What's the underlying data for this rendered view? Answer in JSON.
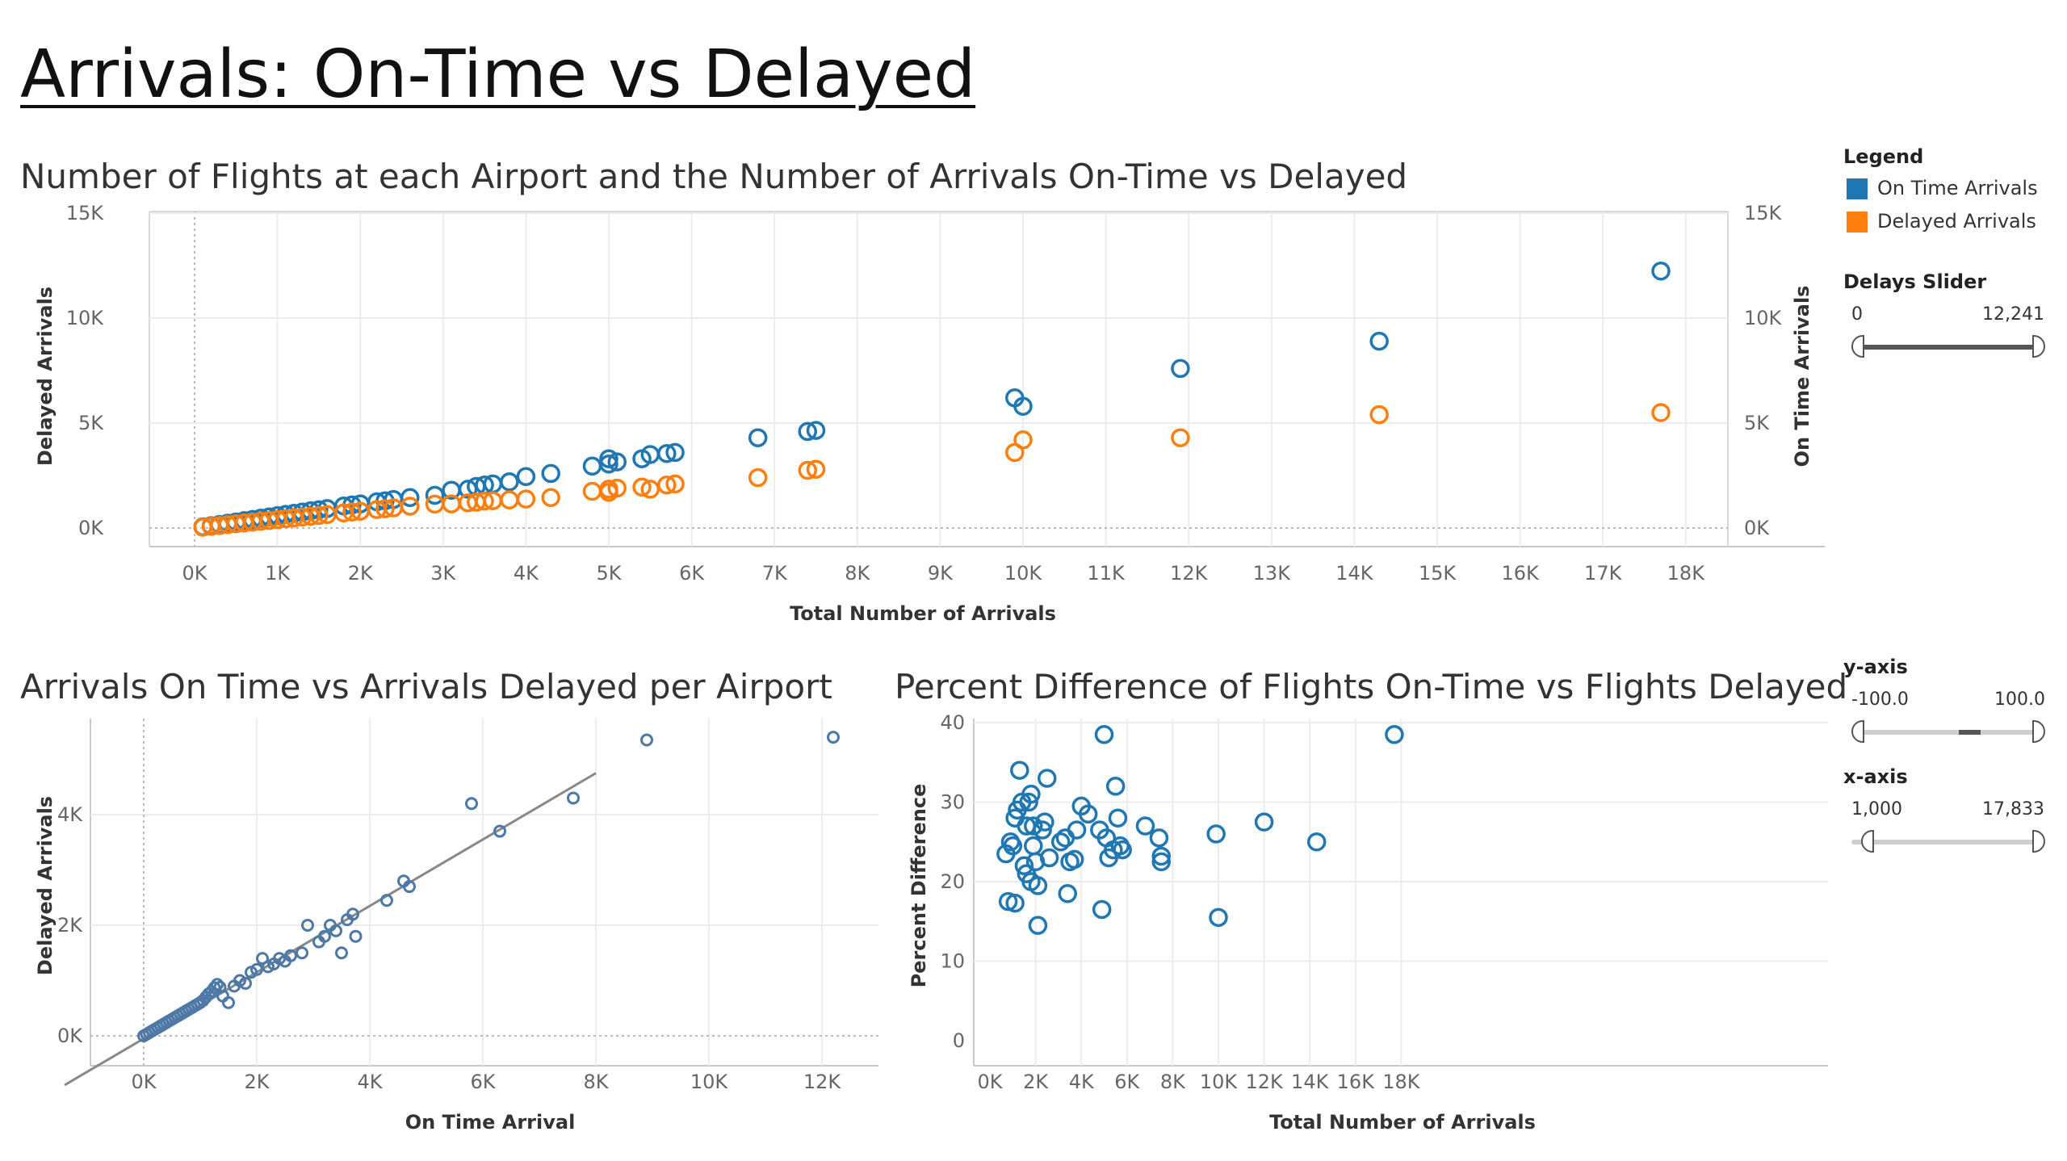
{
  "page": {
    "title": "Arrivals: On-Time vs Delayed"
  },
  "charts": {
    "top": {
      "title": "Number of Flights at each Airport and the Number of Arrivals On-Time vs Delayed"
    },
    "bottom_left": {
      "title": "Arrivals On Time vs Arrivals Delayed per Airport"
    },
    "bottom_right": {
      "title": "Percent Difference of Flights On-Time vs Flights Delayed"
    }
  },
  "sidebar": {
    "legend_title": "Legend",
    "legend_items": [
      {
        "label": "On Time Arrivals",
        "color": "#1f77b4"
      },
      {
        "label": "Delayed Arrivals",
        "color": "#ff7f0e"
      }
    ],
    "delays_slider": {
      "label": "Delays Slider",
      "min_label": "0",
      "max_label": "12,241",
      "min": 0,
      "max": 12241
    },
    "y_axis_filter": {
      "label": "y-axis",
      "min_label": "-100.0",
      "max_label": "100.0",
      "min": -100,
      "max": 100
    },
    "x_axis_filter": {
      "label": "x-axis",
      "min_label": "1,000",
      "max_label": "17,833",
      "min": 1000,
      "max": 17833
    }
  },
  "colors": {
    "on_time": "#1f77b4",
    "delayed": "#ff7f0e",
    "scatter": "#4e79a7",
    "trend": "#888888"
  },
  "chart_data": [
    {
      "type": "scatter",
      "title": "Number of Flights at each Airport and the Number of Arrivals On-Time vs Delayed",
      "xlabel": "Total Number of Arrivals",
      "ylabel": "Delayed Arrivals",
      "y2label": "On Time Arrivals",
      "xlim": [
        0,
        18000
      ],
      "ylim": [
        0,
        15000
      ],
      "xticks": [
        "0K",
        "1K",
        "2K",
        "3K",
        "4K",
        "5K",
        "6K",
        "7K",
        "8K",
        "9K",
        "10K",
        "11K",
        "12K",
        "13K",
        "14K",
        "15K",
        "16K",
        "17K",
        "18K"
      ],
      "yticks": [
        "0K",
        "5K",
        "10K",
        "15K"
      ],
      "grid": true,
      "series": [
        {
          "name": "On Time Arrivals",
          "points": [
            [
              100,
              60
            ],
            [
              200,
              110
            ],
            [
              300,
              170
            ],
            [
              400,
              230
            ],
            [
              500,
              290
            ],
            [
              600,
              350
            ],
            [
              700,
              410
            ],
            [
              800,
              470
            ],
            [
              900,
              530
            ],
            [
              1000,
              590
            ],
            [
              1100,
              650
            ],
            [
              1200,
              700
            ],
            [
              1300,
              760
            ],
            [
              1400,
              820
            ],
            [
              1500,
              870
            ],
            [
              1600,
              930
            ],
            [
              1800,
              1050
            ],
            [
              1900,
              1100
            ],
            [
              2000,
              1150
            ],
            [
              2200,
              1250
            ],
            [
              2300,
              1300
            ],
            [
              2400,
              1360
            ],
            [
              2600,
              1450
            ],
            [
              2900,
              1560
            ],
            [
              3100,
              1800
            ],
            [
              3300,
              1850
            ],
            [
              3400,
              1980
            ],
            [
              3500,
              2050
            ],
            [
              3600,
              2100
            ],
            [
              3800,
              2200
            ],
            [
              4000,
              2450
            ],
            [
              4300,
              2600
            ],
            [
              4800,
              2950
            ],
            [
              5000,
              3050
            ],
            [
              5000,
              3300
            ],
            [
              5100,
              3150
            ],
            [
              5400,
              3300
            ],
            [
              5500,
              3500
            ],
            [
              5700,
              3550
            ],
            [
              5800,
              3600
            ],
            [
              6800,
              4300
            ],
            [
              7400,
              4600
            ],
            [
              7500,
              4650
            ],
            [
              9900,
              6200
            ],
            [
              10000,
              5800
            ],
            [
              11900,
              7600
            ],
            [
              14300,
              8900
            ],
            [
              17700,
              12241
            ]
          ]
        },
        {
          "name": "Delayed Arrivals",
          "points": [
            [
              100,
              40
            ],
            [
              200,
              80
            ],
            [
              300,
              120
            ],
            [
              400,
              160
            ],
            [
              500,
              200
            ],
            [
              600,
              240
            ],
            [
              700,
              280
            ],
            [
              800,
              320
            ],
            [
              900,
              360
            ],
            [
              1000,
              400
            ],
            [
              1100,
              440
            ],
            [
              1200,
              480
            ],
            [
              1300,
              520
            ],
            [
              1400,
              560
            ],
            [
              1500,
              600
            ],
            [
              1600,
              640
            ],
            [
              1800,
              720
            ],
            [
              1900,
              760
            ],
            [
              2000,
              800
            ],
            [
              2200,
              880
            ],
            [
              2300,
              920
            ],
            [
              2400,
              960
            ],
            [
              2600,
              1040
            ],
            [
              2900,
              1140
            ],
            [
              3100,
              1150
            ],
            [
              3300,
              1200
            ],
            [
              3400,
              1230
            ],
            [
              3500,
              1280
            ],
            [
              3600,
              1300
            ],
            [
              3800,
              1340
            ],
            [
              4000,
              1380
            ],
            [
              4300,
              1450
            ],
            [
              4800,
              1750
            ],
            [
              5000,
              1850
            ],
            [
              5000,
              1700
            ],
            [
              5100,
              1900
            ],
            [
              5400,
              1950
            ],
            [
              5500,
              1850
            ],
            [
              5700,
              2050
            ],
            [
              5800,
              2100
            ],
            [
              6800,
              2400
            ],
            [
              7400,
              2750
            ],
            [
              7500,
              2800
            ],
            [
              9900,
              3600
            ],
            [
              10000,
              4200
            ],
            [
              11900,
              4300
            ],
            [
              14300,
              5400
            ],
            [
              17700,
              5500
            ]
          ]
        }
      ]
    },
    {
      "type": "scatter",
      "title": "Arrivals On Time vs Arrivals Delayed per Airport",
      "xlabel": "On Time Arrival",
      "ylabel": "Delayed Arrivals",
      "xlim": [
        -800,
        12800
      ],
      "ylim": [
        -350,
        5800
      ],
      "xticks": [
        0,
        2000,
        4000,
        6000,
        8000,
        10000,
        12000
      ],
      "xticklabels": [
        "0K",
        "2K",
        "4K",
        "6K",
        "8K",
        "10K",
        "12K"
      ],
      "yticks": [
        0,
        2000,
        4000
      ],
      "yticklabels": [
        "0K",
        "2K",
        "4K"
      ],
      "trend_line": {
        "slope": 0.6,
        "intercept": -50
      },
      "points": [
        [
          0,
          0
        ],
        [
          50,
          30
        ],
        [
          100,
          60
        ],
        [
          150,
          90
        ],
        [
          200,
          120
        ],
        [
          250,
          150
        ],
        [
          300,
          180
        ],
        [
          350,
          210
        ],
        [
          400,
          240
        ],
        [
          450,
          270
        ],
        [
          500,
          300
        ],
        [
          550,
          330
        ],
        [
          600,
          360
        ],
        [
          650,
          390
        ],
        [
          700,
          420
        ],
        [
          750,
          450
        ],
        [
          800,
          480
        ],
        [
          850,
          510
        ],
        [
          900,
          540
        ],
        [
          950,
          570
        ],
        [
          1000,
          600
        ],
        [
          1050,
          640
        ],
        [
          1100,
          700
        ],
        [
          1150,
          760
        ],
        [
          1200,
          800
        ],
        [
          1250,
          870
        ],
        [
          1300,
          930
        ],
        [
          1350,
          880
        ],
        [
          1400,
          720
        ],
        [
          1500,
          600
        ],
        [
          1600,
          900
        ],
        [
          1700,
          1000
        ],
        [
          1800,
          950
        ],
        [
          1900,
          1150
        ],
        [
          2000,
          1200
        ],
        [
          2100,
          1400
        ],
        [
          2200,
          1250
        ],
        [
          2300,
          1300
        ],
        [
          2400,
          1400
        ],
        [
          2500,
          1350
        ],
        [
          2600,
          1450
        ],
        [
          2800,
          1500
        ],
        [
          2900,
          2000
        ],
        [
          3100,
          1700
        ],
        [
          3200,
          1800
        ],
        [
          3300,
          2000
        ],
        [
          3400,
          1900
        ],
        [
          3500,
          1500
        ],
        [
          3600,
          2100
        ],
        [
          3700,
          2200
        ],
        [
          3750,
          1800
        ],
        [
          4300,
          2450
        ],
        [
          4600,
          2800
        ],
        [
          4700,
          2700
        ],
        [
          5800,
          4200
        ],
        [
          6300,
          3700
        ],
        [
          7600,
          4300
        ],
        [
          8900,
          5350
        ],
        [
          12200,
          5400
        ]
      ]
    },
    {
      "type": "scatter",
      "title": "Percent Difference of Flights On-Time vs Flights Delayed",
      "xlabel": "Total Number of Arrivals",
      "ylabel": "Percent Difference",
      "xlim": [
        -700,
        18700
      ],
      "ylim": [
        -1.5,
        41.5
      ],
      "xticks": [
        0,
        2000,
        4000,
        6000,
        8000,
        10000,
        12000,
        14000,
        16000,
        18000
      ],
      "xticklabels": [
        "0K",
        "2K",
        "4K",
        "6K",
        "8K",
        "10K",
        "12K",
        "14K",
        "16K",
        "18K"
      ],
      "yticks": [
        0,
        10,
        20,
        30,
        40
      ],
      "yticklabels": [
        "0",
        "10",
        "20",
        "30",
        "40"
      ],
      "points": [
        [
          700,
          23.5
        ],
        [
          800,
          17.5
        ],
        [
          900,
          25
        ],
        [
          1000,
          24.5
        ],
        [
          1100,
          17.3
        ],
        [
          1100,
          28
        ],
        [
          1200,
          29
        ],
        [
          1300,
          34
        ],
        [
          1400,
          30
        ],
        [
          1500,
          22
        ],
        [
          1600,
          21
        ],
        [
          1600,
          27
        ],
        [
          1700,
          30
        ],
        [
          1800,
          31
        ],
        [
          1800,
          20
        ],
        [
          1900,
          27
        ],
        [
          1900,
          24.5
        ],
        [
          2000,
          22.5
        ],
        [
          2100,
          19.5
        ],
        [
          2100,
          14.5
        ],
        [
          2300,
          26.5
        ],
        [
          2400,
          27.5
        ],
        [
          2500,
          33
        ],
        [
          2600,
          23
        ],
        [
          3100,
          25
        ],
        [
          3300,
          25.5
        ],
        [
          3400,
          18.5
        ],
        [
          3500,
          22.5
        ],
        [
          3700,
          22.8
        ],
        [
          3800,
          26.5
        ],
        [
          4000,
          29.5
        ],
        [
          4300,
          28.5
        ],
        [
          4800,
          26.5
        ],
        [
          4900,
          16.5
        ],
        [
          5000,
          38.5
        ],
        [
          5100,
          25.5
        ],
        [
          5200,
          23
        ],
        [
          5400,
          24
        ],
        [
          5500,
          32
        ],
        [
          5600,
          28
        ],
        [
          5700,
          24.5
        ],
        [
          5800,
          24
        ],
        [
          6800,
          27
        ],
        [
          7400,
          25.5
        ],
        [
          7500,
          22.5
        ],
        [
          7500,
          23.2
        ],
        [
          9900,
          26
        ],
        [
          10000,
          15.5
        ],
        [
          12000,
          27.5
        ],
        [
          14300,
          25
        ],
        [
          17700,
          38.5
        ]
      ]
    }
  ]
}
